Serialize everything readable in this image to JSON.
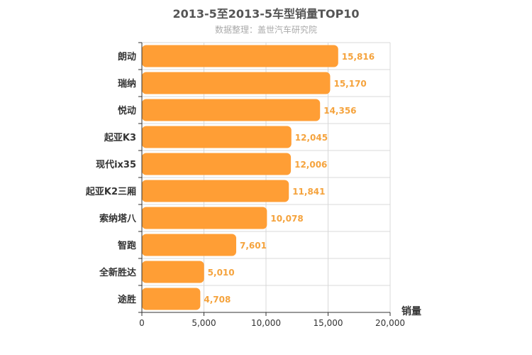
{
  "chart_data": {
    "type": "bar",
    "orientation": "horizontal",
    "title": "2013-5至2013-5车型销量TOP10",
    "subtitle": "数据整理：盖世汽车研究院",
    "categories": [
      "朗动",
      "瑞纳",
      "悦动",
      "起亚K3",
      "现代ix35",
      "起亚K2三厢",
      "索纳塔八",
      "智跑",
      "全新胜达",
      "途胜"
    ],
    "values": [
      15816,
      15170,
      14356,
      12045,
      12006,
      11841,
      10078,
      7601,
      5010,
      4708
    ],
    "value_labels": [
      "15,816",
      "15,170",
      "14,356",
      "12,045",
      "12,006",
      "11,841",
      "10,078",
      "7,601",
      "5,010",
      "4,708"
    ],
    "xlabel": "",
    "ylabel": "销量",
    "xlim": [
      0,
      20000
    ],
    "ticks": [
      0,
      5000,
      10000,
      15000,
      20000
    ],
    "tick_labels": [
      "0",
      "5,000",
      "10,000",
      "15,000",
      "20,000"
    ],
    "grid": true,
    "legend": "none"
  },
  "colors": {
    "bar": "#FF9E35",
    "data_label": "#F5A33D",
    "grid": "#D8D8D8",
    "axis": "#333333"
  }
}
